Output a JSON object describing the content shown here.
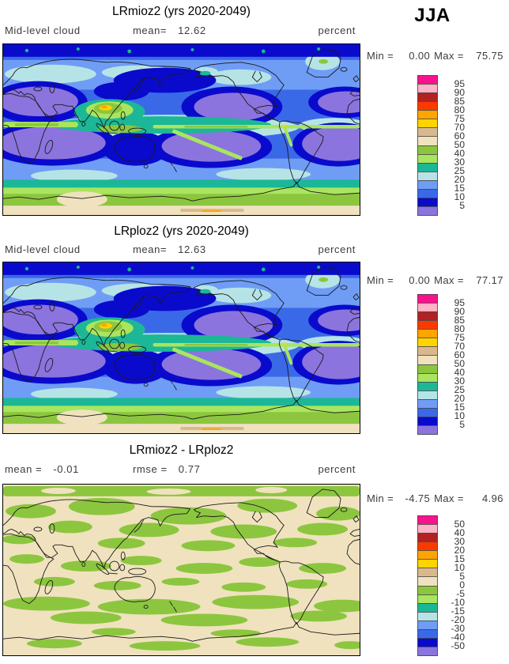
{
  "figure": {
    "season_label": "JJA",
    "variable": "Mid-level cloud",
    "units": "percent"
  },
  "palette_top_to_bottom": [
    "#f8128e",
    "#ffb3c6",
    "#b22222",
    "#fc3a00",
    "#ffa500",
    "#ffd400",
    "#d9b98c",
    "#f0e2be",
    "#8cc63f",
    "#a9e55e",
    "#1cb796",
    "#b6e4e6",
    "#6f9df6",
    "#3a69e8",
    "#0a0acd",
    "#8b74dd"
  ],
  "panels": [
    {
      "title": "LRmioz2 (yrs 2020-2049)",
      "left_label": "Mid-level cloud",
      "left_value": "",
      "mid_label": "mean=",
      "mid_value": "12.62",
      "units": "percent",
      "min_label": "Min =",
      "min_value": "0.00",
      "max_label": "Max =",
      "max_value": "75.75",
      "colorbar_labels": [
        "95",
        "90",
        "85",
        "80",
        "75",
        "70",
        "60",
        "50",
        "40",
        "30",
        "25",
        "20",
        "15",
        "10",
        "5"
      ]
    },
    {
      "title": "LRploz2 (yrs 2020-2049)",
      "left_label": "Mid-level cloud",
      "left_value": "",
      "mid_label": "mean=",
      "mid_value": "12.63",
      "units": "percent",
      "min_label": "Min =",
      "min_value": "0.00",
      "max_label": "Max =",
      "max_value": "77.17",
      "colorbar_labels": [
        "95",
        "90",
        "85",
        "80",
        "75",
        "70",
        "60",
        "50",
        "40",
        "30",
        "25",
        "20",
        "15",
        "10",
        "5"
      ]
    },
    {
      "title": "LRmioz2 - LRploz2",
      "left_label": "mean =",
      "left_value": "-0.01",
      "mid_label": "rmse =",
      "mid_value": "0.77",
      "units": "percent",
      "min_label": "Min =",
      "min_value": "-4.75",
      "max_label": "Max =",
      "max_value": "4.96",
      "colorbar_labels": [
        "50",
        "40",
        "30",
        "20",
        "15",
        "10",
        "5",
        "0",
        "-5",
        "-10",
        "-15",
        "-20",
        "-30",
        "-40",
        "-50"
      ]
    }
  ],
  "chart_data": [
    {
      "type": "heatmap",
      "subtype": "global-map-filled-contours",
      "title": "LRmioz2 (yrs 2020-2049)",
      "variable": "Mid-level cloud",
      "season": "JJA",
      "units": "percent",
      "mean": 12.62,
      "min": 0.0,
      "max": 75.75,
      "contour_levels": [
        5,
        10,
        15,
        20,
        25,
        30,
        40,
        50,
        60,
        70,
        75,
        80,
        85,
        90,
        95
      ],
      "palette_top_to_bottom": [
        "#f8128e",
        "#ffb3c6",
        "#b22222",
        "#fc3a00",
        "#ffa500",
        "#ffd400",
        "#d9b98c",
        "#f0e2be",
        "#8cc63f",
        "#a9e55e",
        "#1cb796",
        "#b6e4e6",
        "#6f9df6",
        "#3a69e8",
        "#0a0acd",
        "#8b74dd"
      ],
      "legend_position": "right"
    },
    {
      "type": "heatmap",
      "subtype": "global-map-filled-contours",
      "title": "LRploz2 (yrs 2020-2049)",
      "variable": "Mid-level cloud",
      "season": "JJA",
      "units": "percent",
      "mean": 12.63,
      "min": 0.0,
      "max": 77.17,
      "contour_levels": [
        5,
        10,
        15,
        20,
        25,
        30,
        40,
        50,
        60,
        70,
        75,
        80,
        85,
        90,
        95
      ],
      "palette_top_to_bottom": [
        "#f8128e",
        "#ffb3c6",
        "#b22222",
        "#fc3a00",
        "#ffa500",
        "#ffd400",
        "#d9b98c",
        "#f0e2be",
        "#8cc63f",
        "#a9e55e",
        "#1cb796",
        "#b6e4e6",
        "#6f9df6",
        "#3a69e8",
        "#0a0acd",
        "#8b74dd"
      ],
      "legend_position": "right"
    },
    {
      "type": "heatmap",
      "subtype": "global-map-difference",
      "title": "LRmioz2 - LRploz2",
      "variable": "Mid-level cloud difference",
      "season": "JJA",
      "units": "percent",
      "mean": -0.01,
      "rmse": 0.77,
      "min": -4.75,
      "max": 4.96,
      "contour_levels": [
        -50,
        -40,
        -30,
        -20,
        -15,
        -10,
        -5,
        0,
        5,
        10,
        15,
        20,
        30,
        40,
        50
      ],
      "palette_top_to_bottom": [
        "#f8128e",
        "#ffb3c6",
        "#b22222",
        "#fc3a00",
        "#ffa500",
        "#ffd400",
        "#d9b98c",
        "#f0e2be",
        "#8cc63f",
        "#a9e55e",
        "#1cb796",
        "#b6e4e6",
        "#6f9df6",
        "#3a69e8",
        "#0a0acd",
        "#8b74dd"
      ],
      "legend_position": "right"
    }
  ]
}
